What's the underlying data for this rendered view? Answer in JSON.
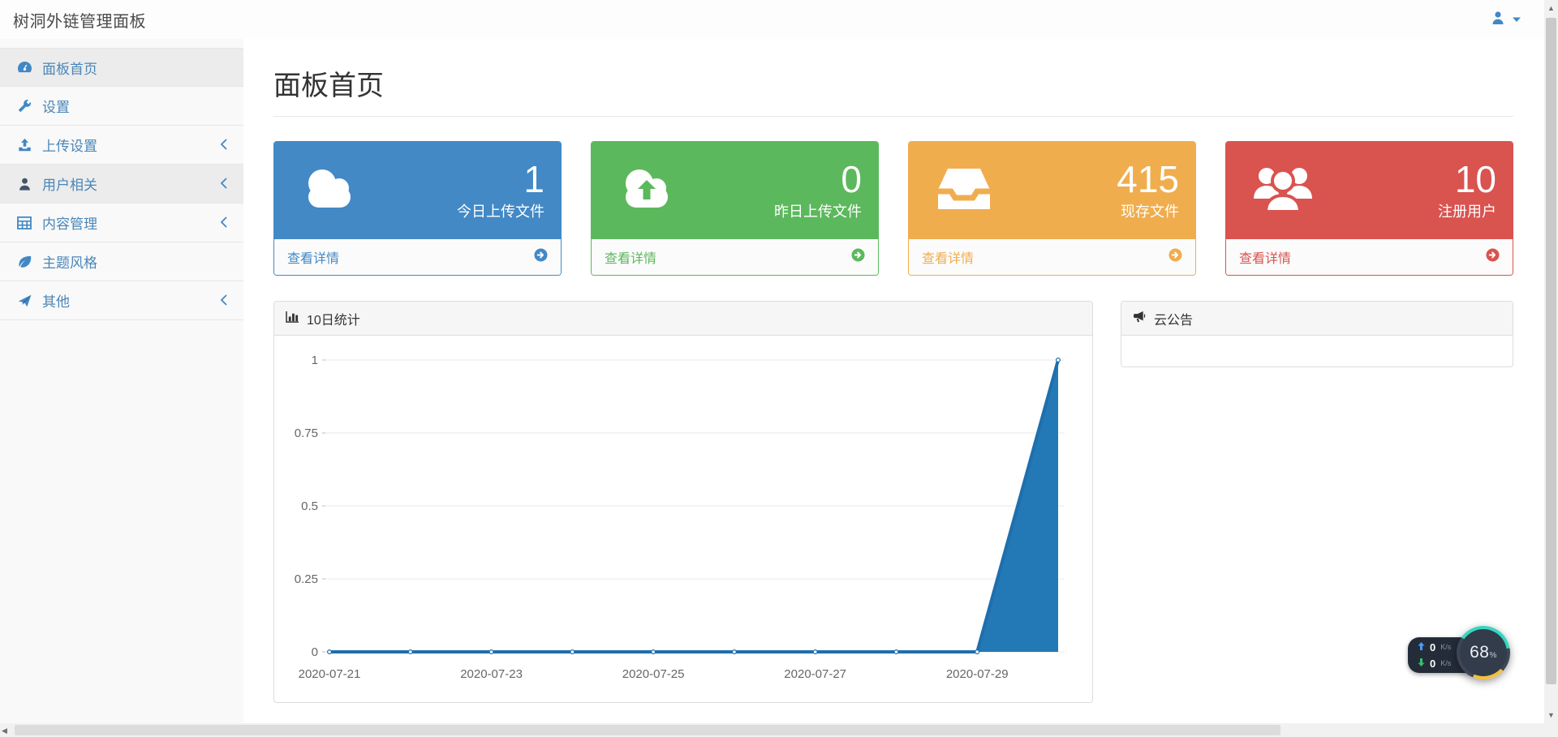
{
  "navbar": {
    "title": "树洞外链管理面板"
  },
  "sidebar": {
    "items": [
      {
        "label": "面板首页",
        "icon": "dashboard-icon",
        "active": true,
        "has_children": false
      },
      {
        "label": "设置",
        "icon": "wrench-icon",
        "active": false,
        "has_children": false
      },
      {
        "label": "上传设置",
        "icon": "upload-icon",
        "active": false,
        "has_children": true
      },
      {
        "label": "用户相关",
        "icon": "user-icon",
        "active": true,
        "has_children": true
      },
      {
        "label": "内容管理",
        "icon": "table-icon",
        "active": false,
        "has_children": true
      },
      {
        "label": "主题风格",
        "icon": "leaf-icon",
        "active": false,
        "has_children": false
      },
      {
        "label": "其他",
        "icon": "paper-plane-icon",
        "active": false,
        "has_children": true
      }
    ]
  },
  "page": {
    "title": "面板首页"
  },
  "info_boxes": [
    {
      "value": "1",
      "label": "今日上传文件",
      "link": "查看详情",
      "icon": "cloud-icon",
      "color": "#4289c6"
    },
    {
      "value": "0",
      "label": "昨日上传文件",
      "link": "查看详情",
      "icon": "cloud-upload-icon",
      "color": "#5cb85c"
    },
    {
      "value": "415",
      "label": "现存文件",
      "link": "查看详情",
      "icon": "inbox-icon",
      "color": "#f0ad4e"
    },
    {
      "value": "10",
      "label": "注册用户",
      "link": "查看详情",
      "icon": "users-icon",
      "color": "#d9534f"
    }
  ],
  "stats_panel": {
    "title": "10日统计",
    "icon": "bar-chart-icon"
  },
  "announcement_panel": {
    "title": "云公告",
    "icon": "bullhorn-icon",
    "body": ""
  },
  "chart_data": {
    "type": "area",
    "title": "10日统计",
    "x": [
      "2020-07-21",
      "2020-07-22",
      "2020-07-23",
      "2020-07-24",
      "2020-07-25",
      "2020-07-26",
      "2020-07-27",
      "2020-07-28",
      "2020-07-29",
      "2020-07-30"
    ],
    "values": [
      0,
      0,
      0,
      0,
      0,
      0,
      0,
      0,
      0,
      1
    ],
    "x_tick_labels": [
      "2020-07-21",
      "2020-07-23",
      "2020-07-25",
      "2020-07-27",
      "2020-07-29"
    ],
    "y_ticks": [
      0,
      0.25,
      0.5,
      0.75,
      1
    ],
    "ylim": [
      0,
      1
    ],
    "grid": true,
    "legend": "none",
    "line_color": "#1e6fad",
    "fill_color": "#2379b5",
    "tick_color": "#666666",
    "grid_color": "#e8e8e8"
  },
  "speed_widget": {
    "up_value": "0",
    "up_unit": "K/s",
    "down_value": "0",
    "down_unit": "K/s",
    "percent": "68",
    "percent_symbol": "%"
  },
  "scrollbar": {
    "up_glyph": "▲",
    "down_glyph": "▼",
    "left_glyph": "◀"
  }
}
